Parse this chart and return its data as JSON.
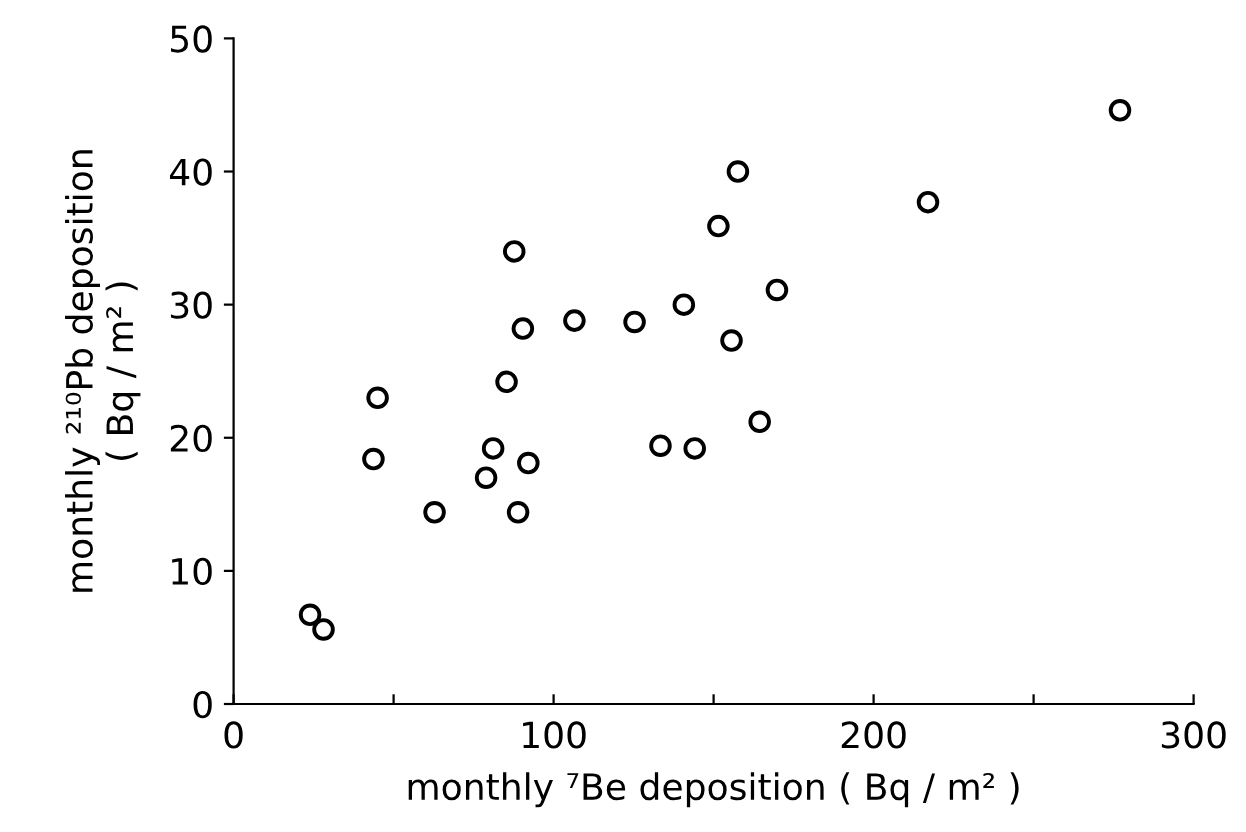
{
  "chart_data": {
    "type": "scatter",
    "xlabel": "monthly ⁷Be deposition ( Bq / m² )",
    "ylabel": "monthly ²¹⁰Pb deposition\n( Bq / m² )",
    "x": [
      23.9,
      28.1,
      43.7,
      45,
      62.8,
      78.9,
      81.1,
      85.3,
      87.7,
      88.9,
      90.4,
      92.1,
      106.5,
      125.3,
      133.4,
      140.7,
      144.1,
      151.5,
      155.6,
      157.6,
      164.4,
      169.8,
      217,
      277
    ],
    "values": [
      6.7,
      5.6,
      18.4,
      23.0,
      14.4,
      17.0,
      19.2,
      24.2,
      34.0,
      14.4,
      28.2,
      18.1,
      28.8,
      28.7,
      19.4,
      30.0,
      19.2,
      35.9,
      27.3,
      40.0,
      21.2,
      31.1,
      37.7,
      44.6
    ],
    "color": "#000000",
    "marker": "circle",
    "xlim": [
      0,
      300
    ],
    "ylim": [
      0,
      50
    ],
    "xticks": [
      0,
      {
        "value": 50,
        "label": null
      },
      100,
      {
        "value": 150,
        "label": null
      },
      200,
      {
        "value": 250,
        "label": null
      },
      300
    ],
    "yticks": [
      0,
      10,
      20,
      30,
      40,
      50
    ],
    "grid": false
  }
}
